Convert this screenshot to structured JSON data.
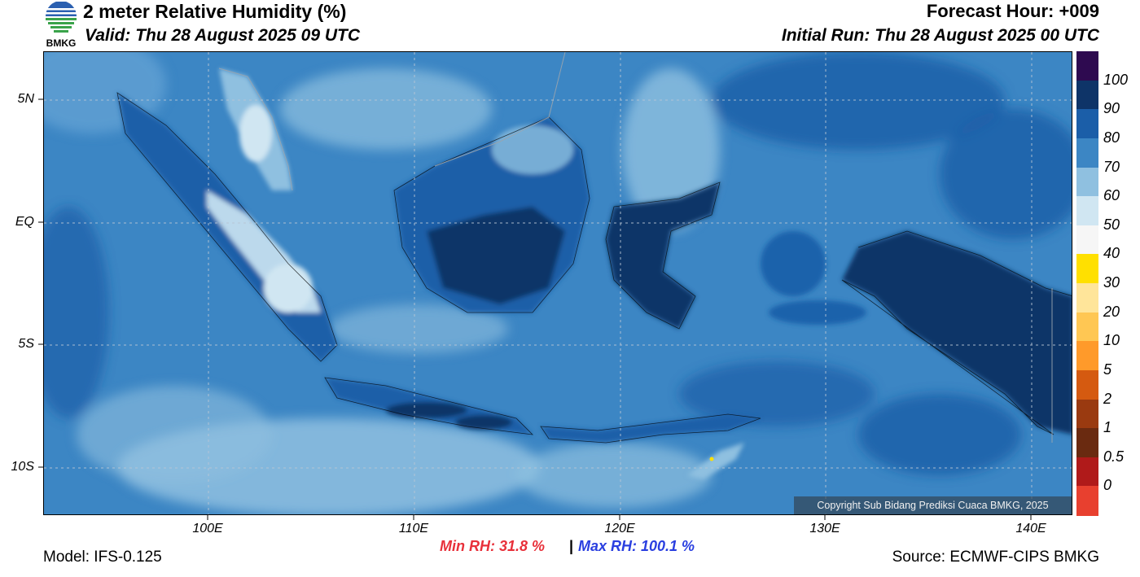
{
  "header": {
    "title": "2 meter Relative Humidity (%)",
    "valid": "Valid: Thu 28 August 2025 09 UTC",
    "forecast_hour": "Forecast Hour: +009",
    "initial_run": "Initial Run: Thu 28 August 2025 00 UTC"
  },
  "logo": {
    "text": "BMKG"
  },
  "map": {
    "lat_labels": [
      "5N",
      "EQ",
      "5S",
      "10S"
    ],
    "lon_labels": [
      "100E",
      "110E",
      "120E",
      "130E",
      "140E"
    ],
    "copyright": "Copyright Sub Bidang Prediksi Cuaca BMKG, 2025"
  },
  "colorbar": {
    "labels": [
      "100",
      "90",
      "80",
      "70",
      "60",
      "50",
      "40",
      "30",
      "20",
      "10",
      "5",
      "2",
      "1",
      "0.5",
      "0"
    ],
    "colors": [
      "#2e0a50",
      "#0e3468",
      "#1b5ea8",
      "#3c86c4",
      "#8fc0e0",
      "#d0e6f2",
      "#f6f6f6",
      "#ffe000",
      "#ffe59a",
      "#ffc753",
      "#ff9a2a",
      "#d55a10",
      "#9a3a10",
      "#6a2a10",
      "#b01a1a",
      "#e8402f"
    ]
  },
  "stats": {
    "min_rh": "Min RH:  31.8 %",
    "separator": "|",
    "max_rh": "Max RH: 100.1 %"
  },
  "footer": {
    "model": "Model: IFS-0.125",
    "source": "Source: ECMWF-CIPS BMKG"
  }
}
